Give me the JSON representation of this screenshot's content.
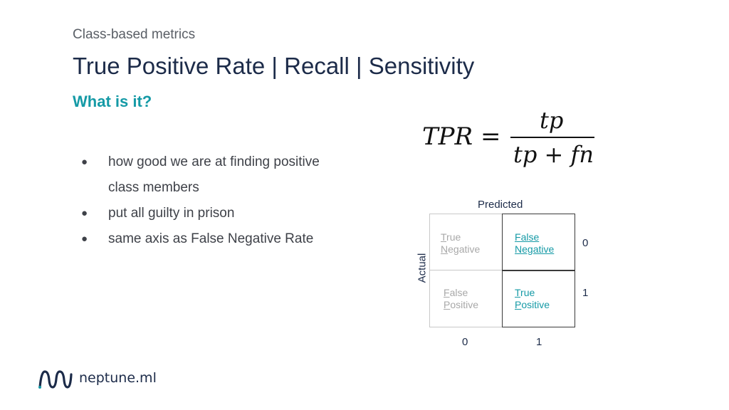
{
  "slide": {
    "overline": "Class-based metrics",
    "title": "True Positive Rate | Recall | Sensitivity",
    "subtitle": "What is it?"
  },
  "bullets": [
    "how good we are at finding positive class members",
    "put all guilty in prison",
    "same axis as False Negative Rate"
  ],
  "formula": {
    "lhs": "TPR =",
    "numerator": "tp",
    "denominator": "tp + fn"
  },
  "confusion_matrix": {
    "predicted_label": "Predicted",
    "actual_label": "Actual",
    "col_ticks": [
      "0",
      "1"
    ],
    "row_ticks": [
      "0",
      "1"
    ],
    "cells": {
      "tn": {
        "first": "T",
        "rest1": "rue",
        "second": "N",
        "rest2": "egative"
      },
      "fn": {
        "first": "F",
        "rest1": "alse",
        "second": "N",
        "rest2": "egative"
      },
      "fp": {
        "first": "F",
        "rest1": "alse",
        "second": "P",
        "rest2": "ositive"
      },
      "tp": {
        "first": "T",
        "rest1": "rue",
        "second": "P",
        "rest2": "ositive"
      }
    },
    "colors": {
      "highlight": "#159aa6",
      "muted": "#a8a8a8"
    }
  },
  "logo": {
    "text": "neptune.ml"
  },
  "colors": {
    "title": "#1c2b49",
    "accent": "#159aa6"
  }
}
